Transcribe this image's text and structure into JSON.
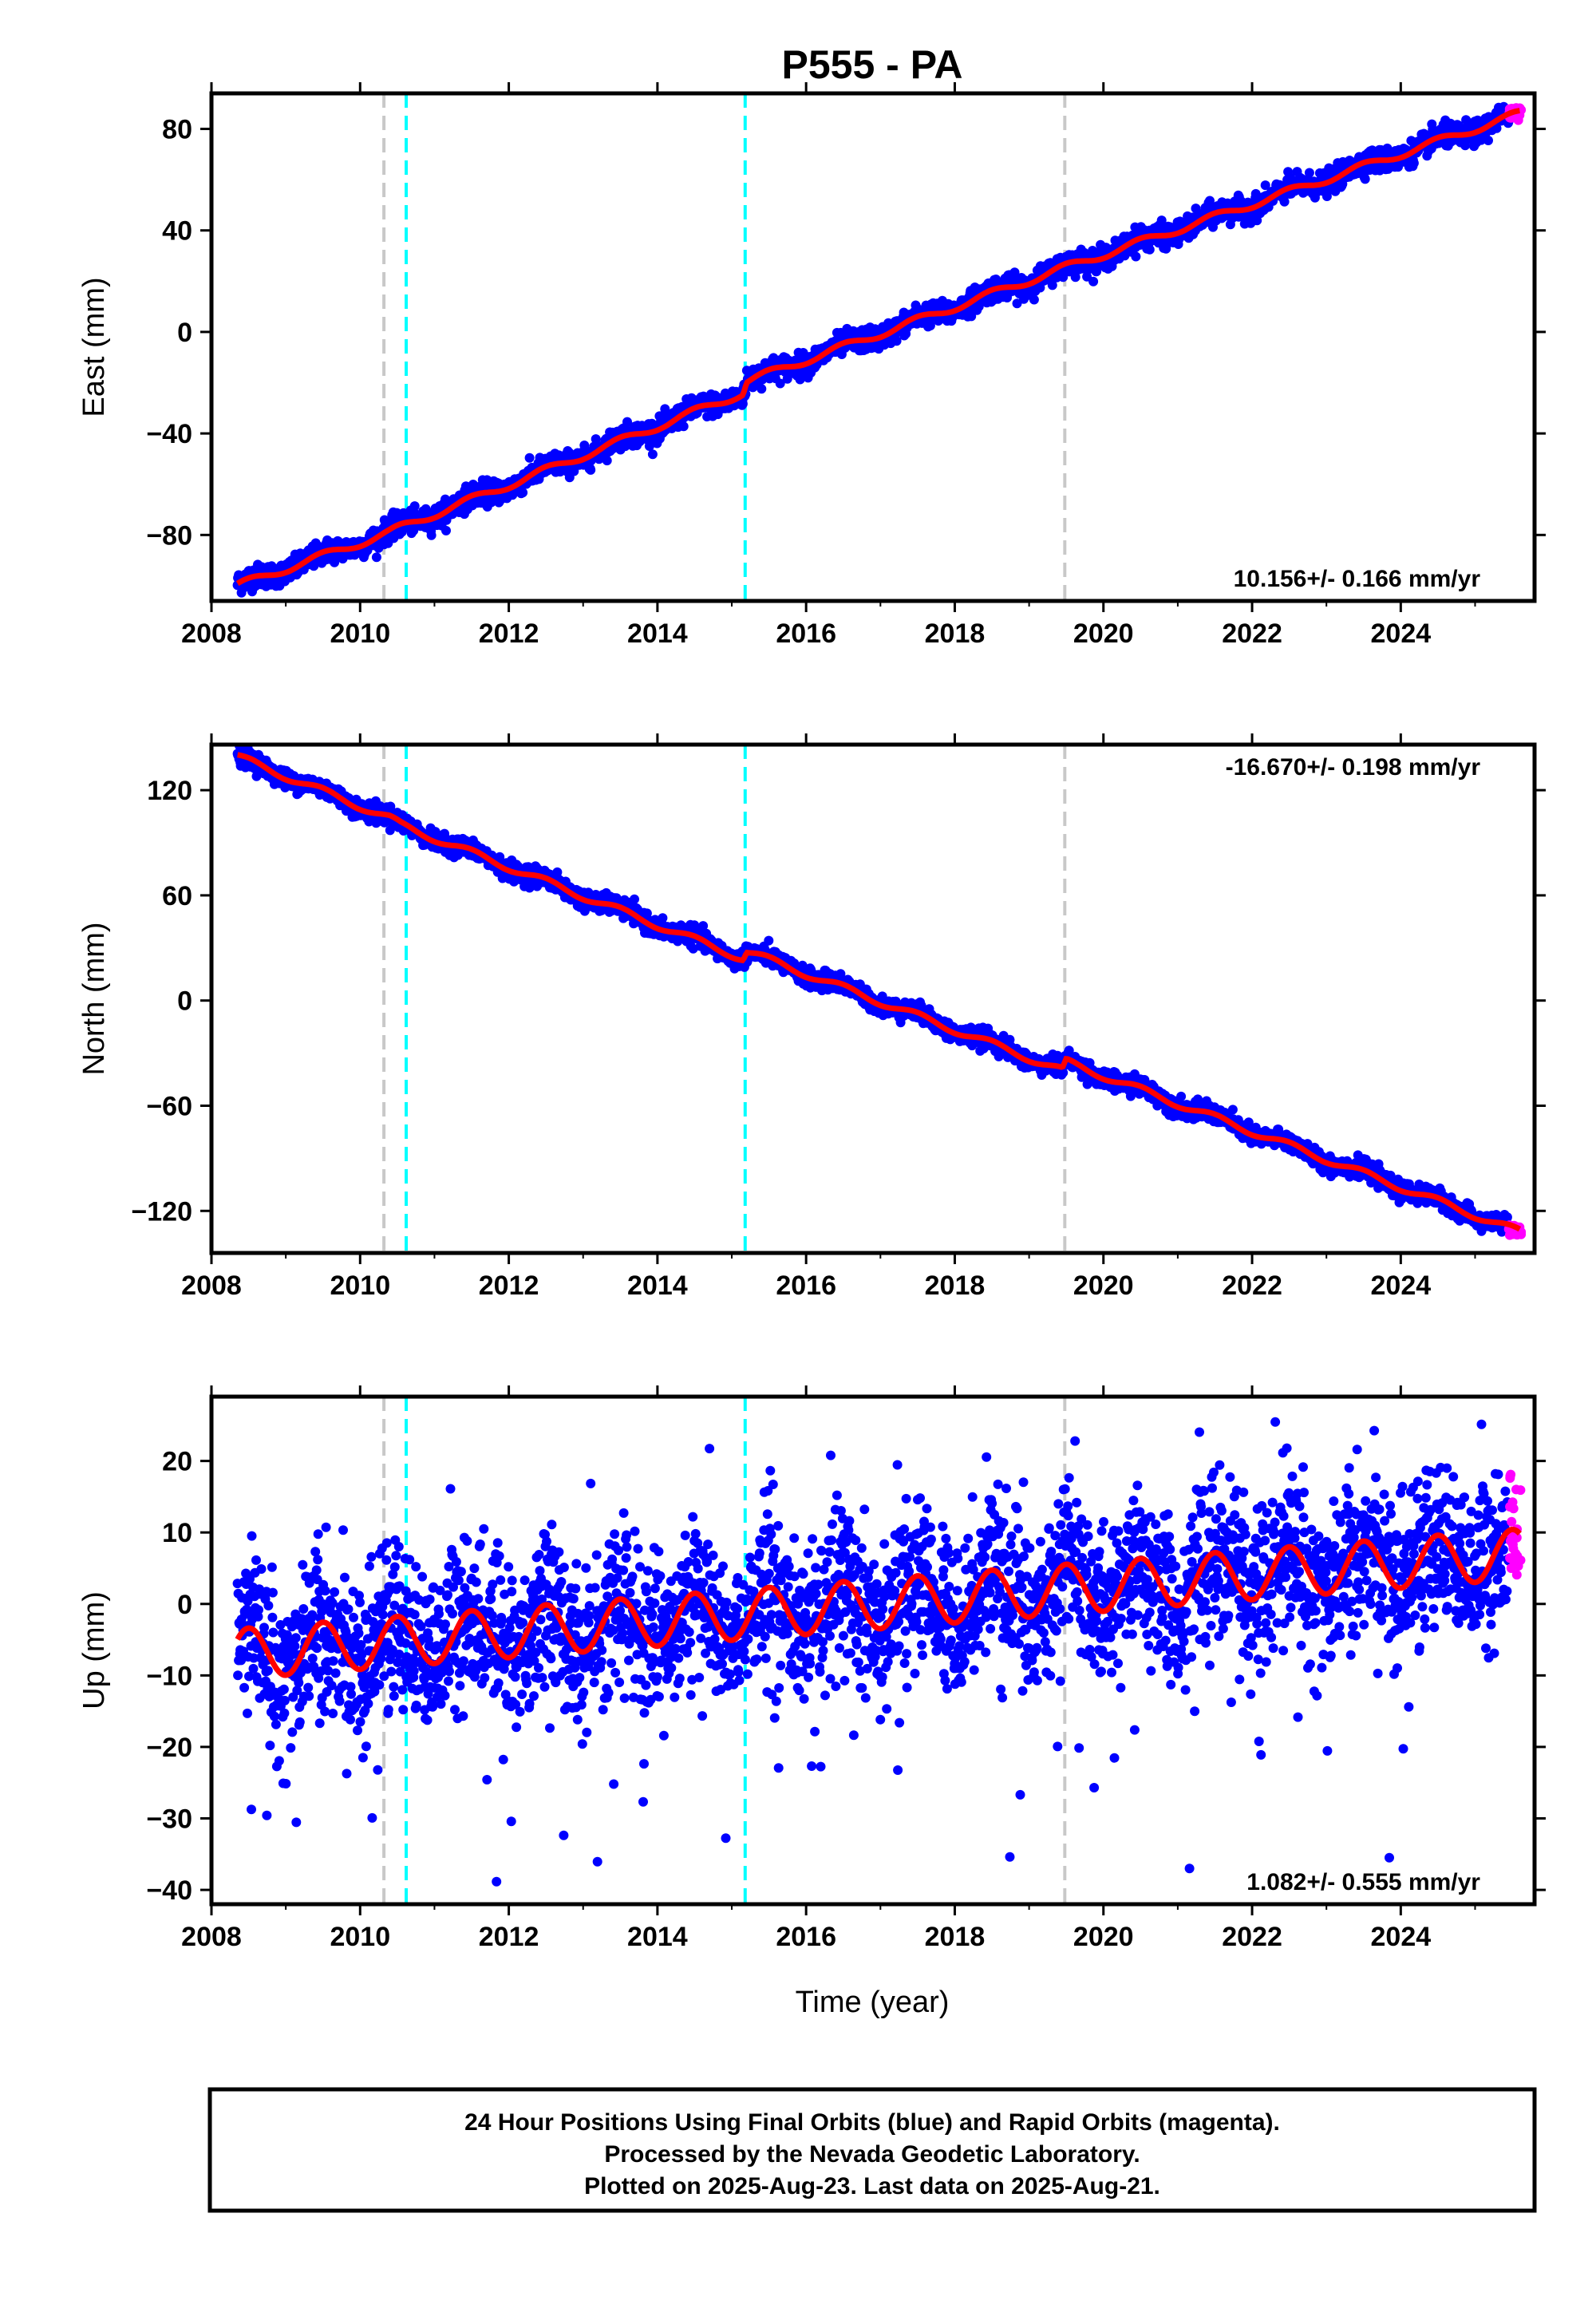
{
  "title": "P555 - PA",
  "colors": {
    "final": "#0000ff",
    "rapid": "#ff00ff",
    "model": "#ff0000",
    "event_gray": "#c8c8c8",
    "event_cyan": "#00ffff",
    "frame": "#000000"
  },
  "chart_data": [
    {
      "type": "scatter",
      "panel": "east",
      "ylabel": "East (mm)",
      "xlim": [
        2008.0,
        2025.8
      ],
      "ylim": [
        -106,
        94
      ],
      "xticks": [
        2008,
        2010,
        2012,
        2014,
        2016,
        2018,
        2020,
        2022,
        2024
      ],
      "yticks": [
        -80,
        -40,
        0,
        40,
        80
      ],
      "rate": "10.156+/- 0.166 mm/yr",
      "rate_position": "bottom-right",
      "series": [
        {
          "kind": "final",
          "x_range": [
            2008.35,
            2025.45
          ],
          "trend": [
            [
              2008.35,
              -100.0
            ],
            [
              2010.4,
              -79.0
            ],
            [
              2010.55,
              -77.0
            ],
            [
              2015.15,
              -24.0
            ],
            [
              2015.2,
              -19.5
            ],
            [
              2019.45,
              25.0
            ],
            [
              2025.6,
              86.0
            ]
          ],
          "noise": 2.2,
          "annual": 1.5
        },
        {
          "kind": "rapid",
          "x_range": [
            2025.45,
            2025.62
          ],
          "y_center": 86.0,
          "spread": 3.0
        },
        {
          "kind": "model",
          "trend": [
            [
              2008.35,
              -100.0
            ],
            [
              2010.4,
              -79.0
            ],
            [
              2010.55,
              -77.0
            ],
            [
              2015.15,
              -24.0
            ],
            [
              2015.2,
              -19.5
            ],
            [
              2019.45,
              25.0
            ],
            [
              2025.6,
              86.0
            ]
          ],
          "annual": 1.5
        }
      ],
      "events": [
        {
          "x": 2010.32,
          "color": "gray"
        },
        {
          "x": 2010.62,
          "color": "cyan"
        },
        {
          "x": 2015.18,
          "color": "cyan"
        },
        {
          "x": 2019.48,
          "color": "gray"
        }
      ]
    },
    {
      "type": "scatter",
      "panel": "north",
      "ylabel": "North (mm)",
      "xlim": [
        2008.0,
        2025.8
      ],
      "ylim": [
        -144,
        146
      ],
      "xticks": [
        2008,
        2010,
        2012,
        2014,
        2016,
        2018,
        2020,
        2022,
        2024
      ],
      "yticks": [
        -120,
        -60,
        0,
        60,
        120
      ],
      "rate": "-16.670+/- 0.198 mm/yr",
      "rate_position": "top-right",
      "series": [
        {
          "kind": "final",
          "x_range": [
            2008.35,
            2025.45
          ],
          "trend": [
            [
              2008.35,
              139.0
            ],
            [
              2010.4,
              104.0
            ],
            [
              2010.55,
              100.0
            ],
            [
              2015.15,
              24.0
            ],
            [
              2015.2,
              28.0
            ],
            [
              2019.45,
              -40.0
            ],
            [
              2019.5,
              -35.0
            ],
            [
              2025.6,
              -132.0
            ]
          ],
          "noise": 2.5,
          "annual": 2.0
        },
        {
          "kind": "rapid",
          "x_range": [
            2025.45,
            2025.62
          ],
          "y_center": -131.0,
          "spread": 3.0
        },
        {
          "kind": "model",
          "trend": [
            [
              2008.35,
              139.0
            ],
            [
              2010.4,
              104.0
            ],
            [
              2010.55,
              100.0
            ],
            [
              2015.15,
              24.0
            ],
            [
              2015.2,
              28.0
            ],
            [
              2019.45,
              -40.0
            ],
            [
              2019.5,
              -35.0
            ],
            [
              2025.6,
              -132.0
            ]
          ],
          "annual": 2.0
        }
      ],
      "events": [
        {
          "x": 2010.32,
          "color": "gray"
        },
        {
          "x": 2010.62,
          "color": "cyan"
        },
        {
          "x": 2015.18,
          "color": "cyan"
        },
        {
          "x": 2019.48,
          "color": "gray"
        }
      ]
    },
    {
      "type": "scatter",
      "panel": "up",
      "ylabel": "Up (mm)",
      "xlabel": "Time (year)",
      "xlim": [
        2008.0,
        2025.8
      ],
      "ylim": [
        -42,
        29
      ],
      "xticks": [
        2008,
        2010,
        2012,
        2014,
        2016,
        2018,
        2020,
        2022,
        2024
      ],
      "yticks": [
        -40,
        -30,
        -20,
        -10,
        0,
        10,
        20
      ],
      "rate": "1.082+/- 0.555 mm/yr",
      "rate_position": "bottom-right",
      "series": [
        {
          "kind": "final",
          "x_range": [
            2008.35,
            2025.45
          ],
          "trend": [
            [
              2008.35,
              -7.0
            ],
            [
              2014.5,
              -2.0
            ],
            [
              2025.6,
              7.0
            ]
          ],
          "noise": 5.5,
          "annual": 3.5
        },
        {
          "kind": "rapid",
          "x_range": [
            2025.45,
            2025.62
          ],
          "y_center": 11.0,
          "spread": 8.0
        },
        {
          "kind": "model",
          "trend": [
            [
              2008.35,
              -7.0
            ],
            [
              2014.5,
              -2.0
            ],
            [
              2025.6,
              7.0
            ]
          ],
          "annual": 3.5
        }
      ],
      "events": [
        {
          "x": 2010.32,
          "color": "gray"
        },
        {
          "x": 2010.62,
          "color": "cyan"
        },
        {
          "x": 2015.18,
          "color": "cyan"
        },
        {
          "x": 2019.48,
          "color": "gray"
        }
      ]
    }
  ],
  "footer": {
    "line1": "24 Hour Positions Using Final Orbits (blue) and Rapid Orbits (magenta).",
    "line2": "Processed by the Nevada Geodetic Laboratory.",
    "line3": "Plotted on 2025-Aug-23. Last data on 2025-Aug-21."
  }
}
